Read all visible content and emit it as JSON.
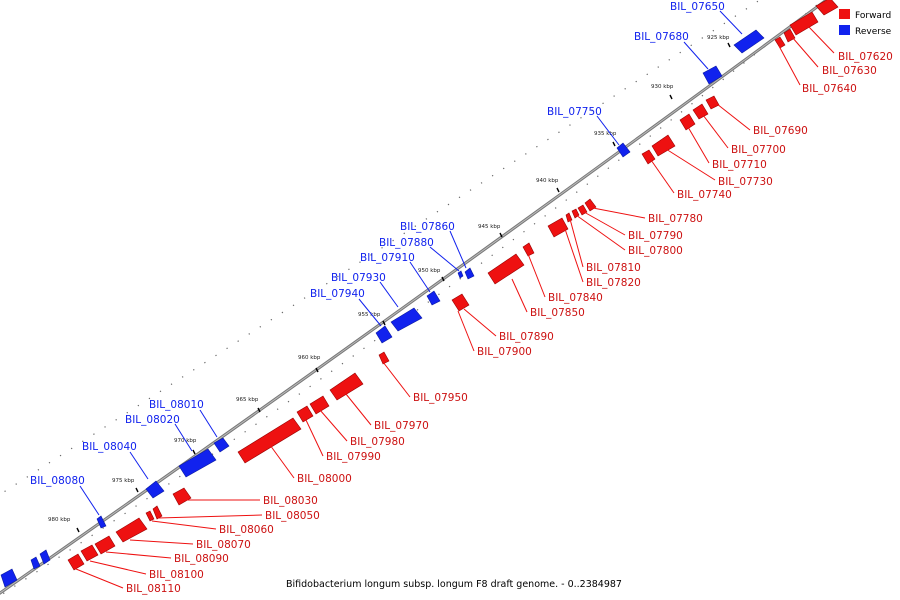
{
  "legend": {
    "forward_label": "Forward",
    "reverse_label": "Reverse",
    "forward_color": "#ee1111",
    "reverse_color": "#1122ee"
  },
  "footer": {
    "caption": "Bifidobacterium longum subsp. longum F8 draft genome. - 0..2384987"
  },
  "ticks": [
    "925 kbp",
    "930 kbp",
    "935 kbp",
    "940 kbp",
    "945 kbp",
    "950 kbp",
    "955 kbp",
    "960 kbp",
    "965 kbp",
    "970 kbp",
    "975 kbp",
    "980 kbp"
  ],
  "reverse_genes": [
    "BIL_07650",
    "BIL_07680",
    "BIL_07750",
    "BIL_07860",
    "BIL_07880",
    "BIL_07910",
    "BIL_07930",
    "BIL_07940",
    "BIL_08010",
    "BIL_08020",
    "BIL_08040",
    "BIL_08080"
  ],
  "forward_genes": [
    "BIL_07620",
    "BIL_07630",
    "BIL_07640",
    "BIL_07690",
    "BIL_07700",
    "BIL_07710",
    "BIL_07730",
    "BIL_07740",
    "BIL_07780",
    "BIL_07790",
    "BIL_07800",
    "BIL_07810",
    "BIL_07820",
    "BIL_07840",
    "BIL_07850",
    "BIL_07890",
    "BIL_07900",
    "BIL_07950",
    "BIL_07970",
    "BIL_07980",
    "BIL_07990",
    "BIL_08000",
    "BIL_08030",
    "BIL_08050",
    "BIL_08060",
    "BIL_08070",
    "BIL_08090",
    "BIL_08100",
    "BIL_08110"
  ]
}
